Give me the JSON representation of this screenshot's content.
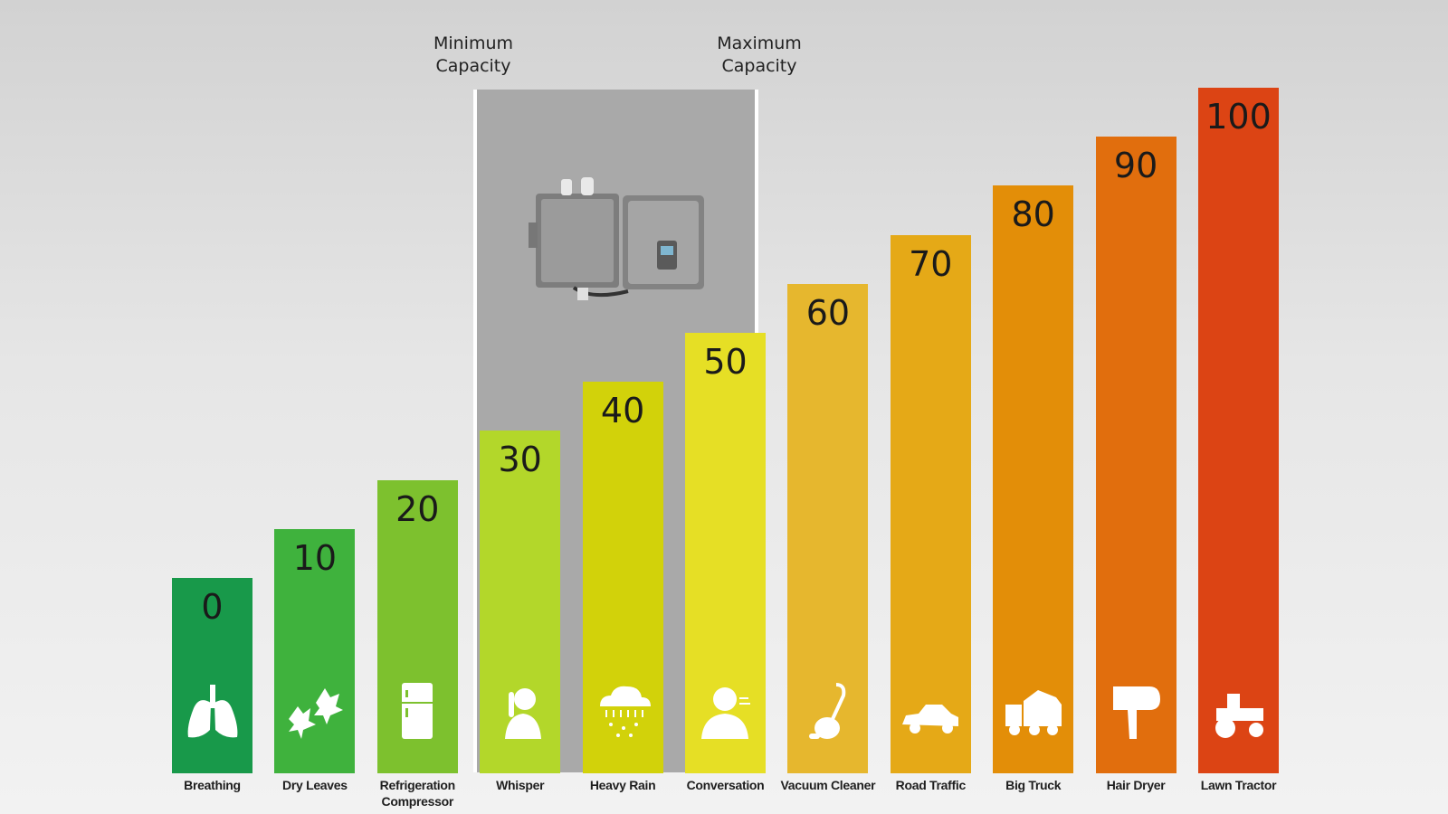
{
  "markers": {
    "min_label": "Minimum\nCapacity",
    "max_label": "Maximum\nCapacity"
  },
  "chart_data": {
    "type": "bar",
    "categories": [
      "Breathing",
      "Dry Leaves",
      "Refrigeration Compressor",
      "Whisper",
      "Heavy Rain",
      "Conversation",
      "Vacuum Cleaner",
      "Road Traffic",
      "Big Truck",
      "Hair Dryer",
      "Lawn Tractor"
    ],
    "values": [
      0,
      10,
      20,
      30,
      40,
      50,
      60,
      70,
      80,
      90,
      100
    ],
    "value_labels": [
      "0",
      "10",
      "20",
      "30",
      "40",
      "50",
      "60",
      "70",
      "80",
      "90",
      "100"
    ],
    "colors": [
      "#18994a",
      "#3fb23d",
      "#7dc12e",
      "#b3d72a",
      "#d2d20a",
      "#e6df25",
      "#e6b72e",
      "#e5a917",
      "#e38e08",
      "#e16e0d",
      "#dc4414"
    ],
    "icons": [
      "lungs-icon",
      "leaves-icon",
      "refrigerator-icon",
      "whisper-icon",
      "rain-cloud-icon",
      "conversation-icon",
      "vacuum-icon",
      "car-icon",
      "truck-icon",
      "hair-dryer-icon",
      "lawn-tractor-icon"
    ],
    "highlight_range": [
      "Whisper",
      "Conversation"
    ],
    "ylim": [
      0,
      100
    ],
    "grid": false,
    "legend": "none"
  }
}
